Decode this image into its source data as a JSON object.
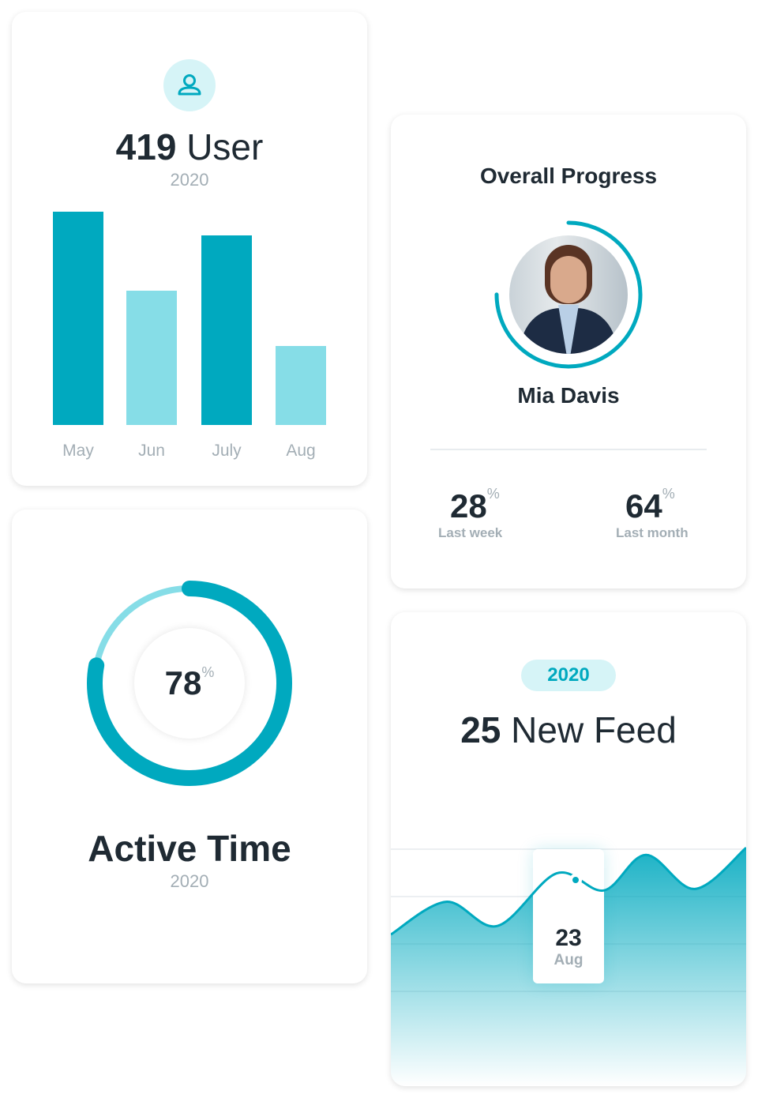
{
  "colors": {
    "accent": "#00a9bf",
    "accent_light": "#86dde7",
    "text": "#1f2a33",
    "muted": "#a3aeb5"
  },
  "users_card": {
    "icon": "user-icon",
    "count": "419",
    "label": "User",
    "year": "2020",
    "chart_data": {
      "type": "bar",
      "categories": [
        "May",
        "Jun",
        "July",
        "Aug"
      ],
      "values": [
        100,
        63,
        89,
        37
      ],
      "colors": [
        "#00a9bf",
        "#86dde7",
        "#00a9bf",
        "#86dde7"
      ],
      "grid": false
    }
  },
  "progress_card": {
    "title": "Overall Progress",
    "name": "Mia Davis",
    "progress": 0.75,
    "stats": [
      {
        "value": "28",
        "unit": "%",
        "label": "Last week"
      },
      {
        "value": "64",
        "unit": "%",
        "label": "Last month"
      }
    ]
  },
  "active_card": {
    "value": "78",
    "unit": "%",
    "progress": 0.78,
    "title": "Active Time",
    "year": "2020"
  },
  "feed_card": {
    "badge": "2020",
    "count": "25",
    "label": "New Feed",
    "tooltip": {
      "value": "23",
      "label": "Aug"
    },
    "chart_data": {
      "type": "area",
      "values": [
        40,
        63,
        46,
        83,
        71,
        96,
        72,
        101
      ],
      "highlight_index": 4,
      "grid": true
    }
  }
}
